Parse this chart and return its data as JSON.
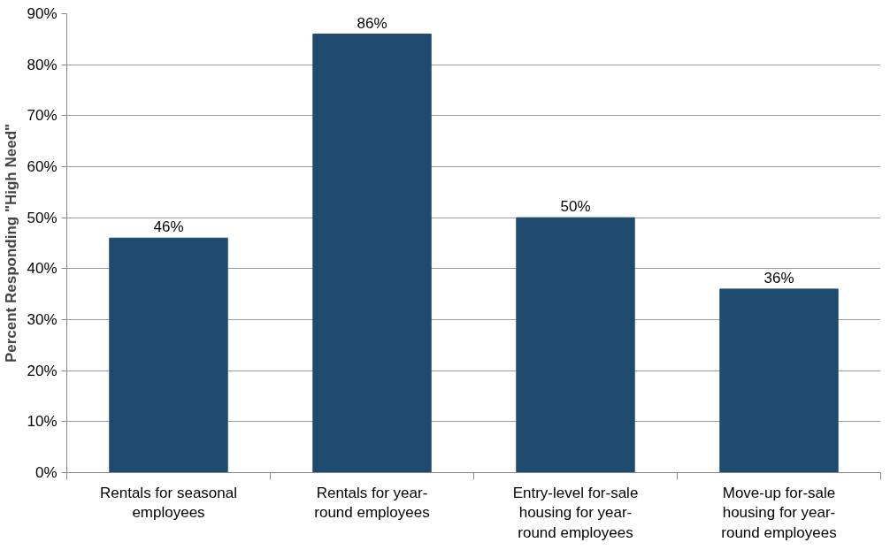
{
  "chart_data": {
    "type": "bar",
    "ylabel": "Percent Responding \"High Need\"",
    "categories": [
      "Rentals for seasonal employees",
      "Rentals for year-round employees",
      "Entry-level for-sale housing for year-round employees",
      "Move-up for-sale housing for year-round employees"
    ],
    "values": [
      46,
      86,
      50,
      36
    ],
    "color": "#1f4a70",
    "value_labels": [
      "46%",
      "86%",
      "50%",
      "36%"
    ],
    "ylim": [
      0,
      90
    ],
    "yticks": [
      {
        "value": 0,
        "label": "0%"
      },
      {
        "value": 10,
        "label": "10%"
      },
      {
        "value": 20,
        "label": "20%"
      },
      {
        "value": 30,
        "label": "30%"
      },
      {
        "value": 40,
        "label": "40%"
      },
      {
        "value": 50,
        "label": "50%"
      },
      {
        "value": 60,
        "label": "60%"
      },
      {
        "value": 70,
        "label": "70%"
      },
      {
        "value": 80,
        "label": "80%"
      },
      {
        "value": 90,
        "label": "90%"
      }
    ],
    "grid": "y"
  }
}
